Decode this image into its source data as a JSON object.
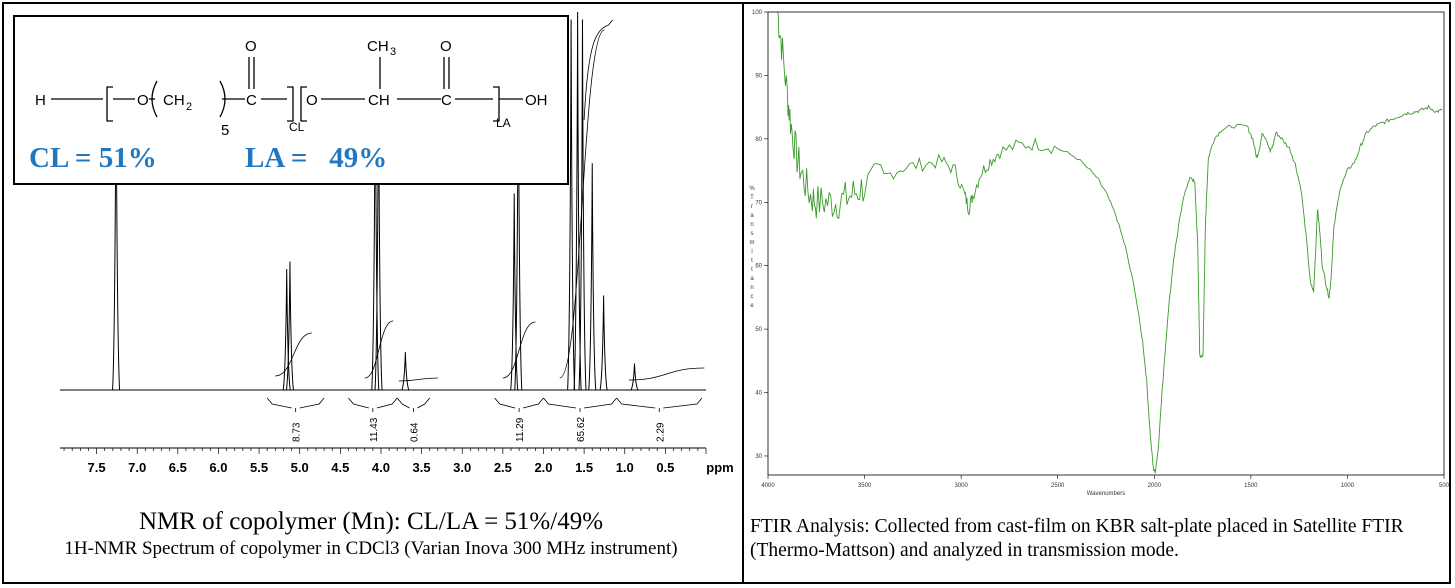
{
  "nmr": {
    "caption_title": "NMR of copolymer (Mn): CL/LA = 51%/49%",
    "caption_sub": "1H-NMR Spectrum of copolymer in CDCl3 (Varian Inova 300 MHz instrument)",
    "structure": {
      "h": "H",
      "o1": "O",
      "ch2": "CH",
      "ch2_sub": "2",
      "five": "5",
      "c1": "C",
      "o_top1": "O",
      "cl_sub": "CL",
      "o2": "O",
      "ch": "CH",
      "ch3": "CH",
      "ch3_sub": "3",
      "c2": "C",
      "o_top2": "O",
      "la_sub": "LA",
      "oh": "OH",
      "cl_ratio": "CL = 51%",
      "la_ratio": "LA =   49%"
    }
  },
  "ftir": {
    "caption": "FTIR Analysis: Collected from cast-film on KBR salt-plate placed in Satellite FTIR (Thermo-Mattson) and analyzed in transmission mode."
  },
  "chart_data": [
    {
      "type": "line",
      "name": "1H-NMR spectrum",
      "xlabel": "ppm",
      "xlim": [
        7.95,
        0.0
      ],
      "x_ticks": [
        "7.5",
        "7.0",
        "6.5",
        "6.0",
        "5.5",
        "5.0",
        "4.5",
        "4.0",
        "3.5",
        "3.0",
        "2.5",
        "2.0",
        "1.5",
        "1.0",
        "0.5"
      ],
      "peaks": [
        {
          "ppm": 7.26,
          "height": 0.88
        },
        {
          "ppm": 5.16,
          "height": 0.32
        },
        {
          "ppm": 5.12,
          "height": 0.34
        },
        {
          "ppm": 4.07,
          "height": 0.9
        },
        {
          "ppm": 4.03,
          "height": 0.86
        },
        {
          "ppm": 3.7,
          "height": 0.1
        },
        {
          "ppm": 2.36,
          "height": 0.52
        },
        {
          "ppm": 2.31,
          "height": 0.9
        },
        {
          "ppm": 1.66,
          "height": 0.98
        },
        {
          "ppm": 1.58,
          "height": 1.0
        },
        {
          "ppm": 1.52,
          "height": 0.98
        },
        {
          "ppm": 1.4,
          "height": 0.6
        },
        {
          "ppm": 1.26,
          "height": 0.25
        },
        {
          "ppm": 0.88,
          "height": 0.07
        }
      ],
      "integrals": [
        {
          "from": 5.4,
          "to": 4.7,
          "value": "8.73"
        },
        {
          "from": 4.4,
          "to": 3.8,
          "value": "11.43"
        },
        {
          "from": 3.8,
          "to": 3.4,
          "value": "0.64"
        },
        {
          "from": 2.6,
          "to": 2.0,
          "value": "11.29"
        },
        {
          "from": 2.0,
          "to": 1.1,
          "value": "65.62"
        },
        {
          "from": 1.1,
          "to": 0.05,
          "value": "2.29"
        }
      ]
    },
    {
      "type": "line",
      "name": "FTIR spectrum",
      "xlabel": "Wavenumbers",
      "ylabel": "%Transmittance",
      "xlim": [
        4000,
        500
      ],
      "ylim": [
        27,
        100
      ],
      "x_ticks": [
        "4000",
        "3500",
        "3000",
        "2500",
        "2000",
        "1500",
        "1000",
        "500"
      ],
      "y_ticks": [
        "100",
        "90",
        "80",
        "70",
        "60",
        "50",
        "40",
        "30"
      ],
      "series_color": "#3c9a2c",
      "points": [
        [
          3950,
          100
        ],
        [
          3930,
          95
        ],
        [
          3900,
          87
        ],
        [
          3880,
          82
        ],
        [
          3850,
          77
        ],
        [
          3820,
          74
        ],
        [
          3780,
          71
        ],
        [
          3750,
          70
        ],
        [
          3700,
          70
        ],
        [
          3650,
          70
        ],
        [
          3600,
          70.5
        ],
        [
          3550,
          71.5
        ],
        [
          3500,
          72.5
        ],
        [
          3400,
          74
        ],
        [
          3300,
          75.5
        ],
        [
          3200,
          76
        ],
        [
          3100,
          76.5
        ],
        [
          3030,
          75
        ],
        [
          2980,
          71
        ],
        [
          2960,
          69
        ],
        [
          2940,
          71
        ],
        [
          2900,
          74.5
        ],
        [
          2850,
          76.5
        ],
        [
          2800,
          78
        ],
        [
          2700,
          79
        ],
        [
          2600,
          79.2
        ],
        [
          2500,
          78.5
        ],
        [
          2400,
          77
        ],
        [
          2300,
          74
        ],
        [
          2250,
          71.5
        ],
        [
          2200,
          68
        ],
        [
          2150,
          63
        ],
        [
          2100,
          56
        ],
        [
          2060,
          48
        ],
        [
          2040,
          42
        ],
        [
          2020,
          33
        ],
        [
          2005,
          28
        ],
        [
          1995,
          27.5
        ],
        [
          1980,
          31
        ],
        [
          1960,
          40
        ],
        [
          1930,
          52
        ],
        [
          1900,
          61
        ],
        [
          1870,
          67
        ],
        [
          1840,
          72
        ],
        [
          1810,
          74
        ],
        [
          1790,
          73
        ],
        [
          1775,
          63
        ],
        [
          1770,
          55
        ],
        [
          1765,
          46
        ],
        [
          1755,
          45.5
        ],
        [
          1748,
          46
        ],
        [
          1742,
          55
        ],
        [
          1735,
          67
        ],
        [
          1720,
          77
        ],
        [
          1690,
          80
        ],
        [
          1650,
          81.5
        ],
        [
          1600,
          82
        ],
        [
          1520,
          82
        ],
        [
          1490,
          80
        ],
        [
          1470,
          77
        ],
        [
          1455,
          78.5
        ],
        [
          1440,
          81
        ],
        [
          1420,
          80
        ],
        [
          1400,
          78
        ],
        [
          1385,
          79
        ],
        [
          1370,
          81
        ],
        [
          1340,
          80
        ],
        [
          1300,
          78.5
        ],
        [
          1270,
          76
        ],
        [
          1240,
          72
        ],
        [
          1215,
          65
        ],
        [
          1190,
          57
        ],
        [
          1175,
          56
        ],
        [
          1165,
          62
        ],
        [
          1155,
          69
        ],
        [
          1145,
          66
        ],
        [
          1130,
          60
        ],
        [
          1110,
          57
        ],
        [
          1095,
          55
        ],
        [
          1085,
          58
        ],
        [
          1070,
          66
        ],
        [
          1040,
          72
        ],
        [
          1000,
          75
        ],
        [
          960,
          76.5
        ],
        [
          930,
          79
        ],
        [
          900,
          81
        ],
        [
          860,
          82
        ],
        [
          820,
          82.5
        ],
        [
          780,
          83
        ],
        [
          740,
          83.5
        ],
        [
          700,
          84
        ],
        [
          660,
          84.2
        ],
        [
          620,
          84.5
        ],
        [
          580,
          85
        ],
        [
          540,
          84.3
        ],
        [
          510,
          84.5
        ]
      ]
    }
  ]
}
